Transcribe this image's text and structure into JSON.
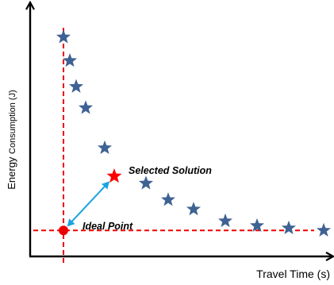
{
  "chart_data": {
    "type": "scatter",
    "xlabel": "Travel Time (s)",
    "ylabel": "Energy Consumption (J)",
    "ylabel_parts": {
      "main": "Energy",
      "small": "Consumption (J)"
    },
    "grid": false,
    "tick_labels": false,
    "xlim": [
      0,
      100
    ],
    "ylim": [
      0,
      100
    ],
    "series": [
      {
        "marker": "star",
        "color": "#3f6294",
        "points": [
          {
            "x": 13,
            "y": 92
          },
          {
            "x": 15,
            "y": 82
          },
          {
            "x": 17,
            "y": 71
          },
          {
            "x": 20,
            "y": 62
          },
          {
            "x": 26,
            "y": 45
          },
          {
            "x": 39,
            "y": 30
          },
          {
            "x": 46,
            "y": 23
          },
          {
            "x": 54,
            "y": 19
          },
          {
            "x": 64,
            "y": 14
          },
          {
            "x": 74,
            "y": 12
          },
          {
            "x": 84,
            "y": 11
          },
          {
            "x": 95,
            "y": 10
          }
        ]
      }
    ],
    "selected_solution": {
      "x": 29,
      "y": 33,
      "label": "Selected Solution",
      "color": "#ff0000",
      "marker": "star"
    },
    "ideal_point": {
      "x": 13,
      "y": 10,
      "label": "Ideal Point",
      "color": "#ee0000",
      "marker": "circle"
    },
    "reference_lines": {
      "color": "#ee0000",
      "style": "dashed"
    },
    "connector": {
      "color": "#1aa3e0",
      "style": "double-arrow"
    },
    "axis_color": "#000000"
  }
}
